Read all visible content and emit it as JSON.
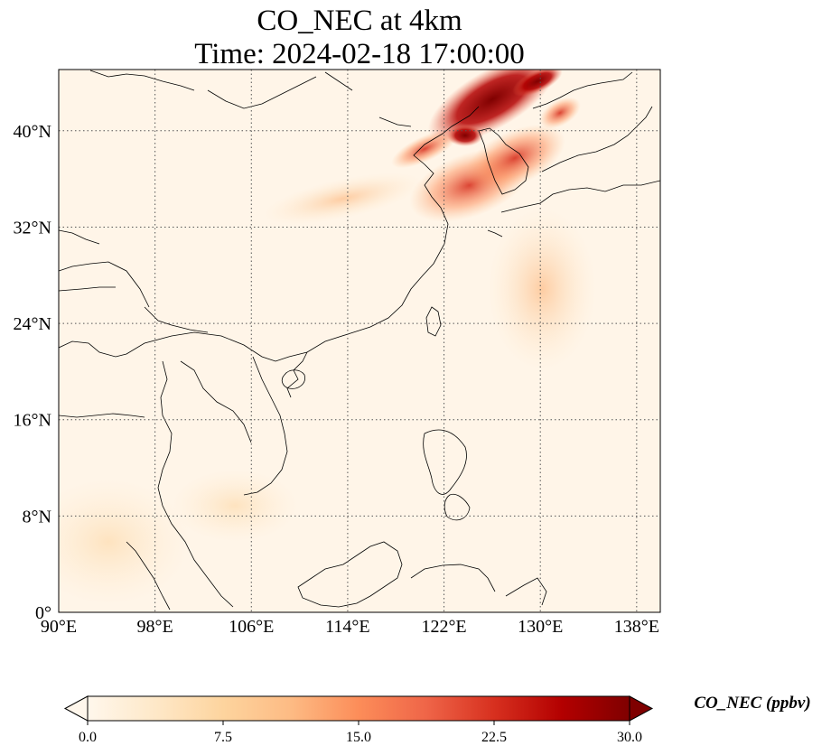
{
  "title_line1": "CO_NEC at 4km",
  "title_line2": "Time: 2024-02-18 17:00:00",
  "map": {
    "lon_range": [
      90,
      140
    ],
    "lat_range": [
      0,
      45
    ],
    "lon_ticks": [
      90,
      98,
      106,
      114,
      122,
      130,
      138
    ],
    "lat_ticks": [
      0,
      8,
      16,
      24,
      32,
      40
    ],
    "lon_tick_labels": [
      "90°E",
      "98°E",
      "106°E",
      "114°E",
      "122°E",
      "130°E",
      "138°E"
    ],
    "lat_tick_labels": [
      "0°",
      "8°N",
      "16°N",
      "24°N",
      "32°N",
      "40°N"
    ],
    "gridlines": true,
    "coastlines": true
  },
  "colorbar": {
    "label": "CO_NEC (ppbv)",
    "min": 0.0,
    "max": 30.0,
    "ticks": [
      "0.0",
      "7.5",
      "15.0",
      "22.5",
      "30.0"
    ],
    "extend": "both",
    "colormap": "OrRd",
    "colors": [
      "#fff7ec",
      "#fee8c8",
      "#fdd49e",
      "#fdbb84",
      "#fc8d59",
      "#ef6548",
      "#d7301f",
      "#b30000",
      "#7f0000"
    ]
  }
}
